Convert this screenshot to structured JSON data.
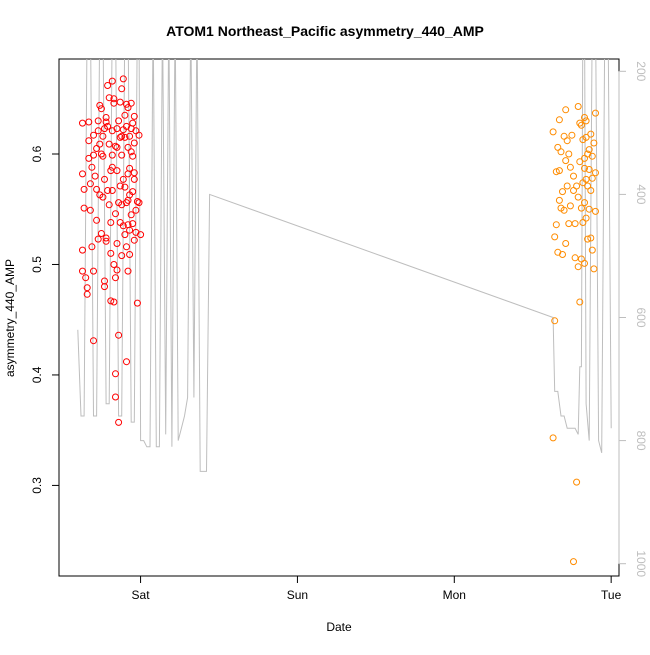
{
  "chart_data": {
    "type": "scatter",
    "title": "ATOM1 Northeast_Pacific asymmetry_440_AMP",
    "xlabel": "Date",
    "ylabel": "asymmetry_440_AMP",
    "x_ticks": [
      "Sat",
      "Sun",
      "Mon",
      "Tue"
    ],
    "x_tick_values": [
      1.0,
      2.0,
      3.0,
      4.0
    ],
    "xlim": [
      0.48,
      4.05
    ],
    "y_ticks": [
      "0.3",
      "0.4",
      "0.5",
      "0.6"
    ],
    "ylim": [
      0.218,
      0.686
    ],
    "y2_ticks": [
      "200",
      "400",
      "600",
      "800",
      "1000"
    ],
    "y2lim": [
      1020,
      180
    ],
    "grid": false,
    "legend": "none",
    "colors": {
      "series1": "#ff0000",
      "series2": "#ff8c00",
      "altitude": "#bebebe"
    },
    "series": [
      {
        "axis": "left",
        "color": "#ff0000",
        "points": [
          [
            0.63,
            0.628
          ],
          [
            0.63,
            0.582
          ],
          [
            0.63,
            0.513
          ],
          [
            0.63,
            0.494
          ],
          [
            0.64,
            0.568
          ],
          [
            0.64,
            0.551
          ],
          [
            0.65,
            0.488
          ],
          [
            0.66,
            0.473
          ],
          [
            0.66,
            0.479
          ],
          [
            0.67,
            0.629
          ],
          [
            0.67,
            0.612
          ],
          [
            0.67,
            0.596
          ],
          [
            0.68,
            0.549
          ],
          [
            0.69,
            0.588
          ],
          [
            0.69,
            0.516
          ],
          [
            0.7,
            0.494
          ],
          [
            0.7,
            0.431
          ],
          [
            0.7,
            0.617
          ],
          [
            0.71,
            0.58
          ],
          [
            0.72,
            0.605
          ],
          [
            0.72,
            0.568
          ],
          [
            0.72,
            0.54
          ],
          [
            0.73,
            0.63
          ],
          [
            0.73,
            0.621
          ],
          [
            0.74,
            0.609
          ],
          [
            0.74,
            0.563
          ],
          [
            0.75,
            0.641
          ],
          [
            0.75,
            0.6
          ],
          [
            0.75,
            0.528
          ],
          [
            0.76,
            0.616
          ],
          [
            0.76,
            0.561
          ],
          [
            0.77,
            0.623
          ],
          [
            0.77,
            0.577
          ],
          [
            0.77,
            0.485
          ],
          [
            0.77,
            0.48
          ],
          [
            0.78,
            0.633
          ],
          [
            0.78,
            0.629
          ],
          [
            0.78,
            0.524
          ],
          [
            0.78,
            0.521
          ],
          [
            0.79,
            0.662
          ],
          [
            0.79,
            0.625
          ],
          [
            0.79,
            0.567
          ],
          [
            0.8,
            0.609
          ],
          [
            0.8,
            0.554
          ],
          [
            0.81,
            0.585
          ],
          [
            0.81,
            0.538
          ],
          [
            0.81,
            0.51
          ],
          [
            0.81,
            0.467
          ],
          [
            0.82,
            0.666
          ],
          [
            0.82,
            0.621
          ],
          [
            0.82,
            0.599
          ],
          [
            0.82,
            0.567
          ],
          [
            0.83,
            0.65
          ],
          [
            0.83,
            0.646
          ],
          [
            0.83,
            0.5
          ],
          [
            0.83,
            0.466
          ],
          [
            0.84,
            0.607
          ],
          [
            0.84,
            0.546
          ],
          [
            0.84,
            0.488
          ],
          [
            0.84,
            0.401
          ],
          [
            0.84,
            0.38
          ],
          [
            0.85,
            0.623
          ],
          [
            0.85,
            0.606
          ],
          [
            0.85,
            0.585
          ],
          [
            0.85,
            0.519
          ],
          [
            0.85,
            0.495
          ],
          [
            0.86,
            0.63
          ],
          [
            0.86,
            0.556
          ],
          [
            0.86,
            0.357
          ],
          [
            0.86,
            0.436
          ],
          [
            0.87,
            0.647
          ],
          [
            0.87,
            0.615
          ],
          [
            0.87,
            0.571
          ],
          [
            0.87,
            0.538
          ],
          [
            0.88,
            0.616
          ],
          [
            0.88,
            0.599
          ],
          [
            0.88,
            0.554
          ],
          [
            0.88,
            0.508
          ],
          [
            0.89,
            0.668
          ],
          [
            0.89,
            0.622
          ],
          [
            0.89,
            0.577
          ],
          [
            0.89,
            0.535
          ],
          [
            0.9,
            0.635
          ],
          [
            0.9,
            0.615
          ],
          [
            0.9,
            0.57
          ],
          [
            0.9,
            0.527
          ],
          [
            0.91,
            0.645
          ],
          [
            0.91,
            0.625
          ],
          [
            0.91,
            0.556
          ],
          [
            0.91,
            0.516
          ],
          [
            0.91,
            0.412
          ],
          [
            0.92,
            0.606
          ],
          [
            0.92,
            0.582
          ],
          [
            0.92,
            0.558
          ],
          [
            0.92,
            0.536
          ],
          [
            0.92,
            0.494
          ],
          [
            0.93,
            0.616
          ],
          [
            0.93,
            0.587
          ],
          [
            0.93,
            0.563
          ],
          [
            0.93,
            0.531
          ],
          [
            0.93,
            0.509
          ],
          [
            0.94,
            0.646
          ],
          [
            0.94,
            0.623
          ],
          [
            0.94,
            0.602
          ],
          [
            0.94,
            0.545
          ],
          [
            0.95,
            0.628
          ],
          [
            0.95,
            0.598
          ],
          [
            0.95,
            0.566
          ],
          [
            0.95,
            0.537
          ],
          [
            0.96,
            0.61
          ],
          [
            0.96,
            0.583
          ],
          [
            0.96,
            0.577
          ],
          [
            0.96,
            0.522
          ],
          [
            0.97,
            0.621
          ],
          [
            0.97,
            0.549
          ],
          [
            0.97,
            0.529
          ],
          [
            0.98,
            0.557
          ],
          [
            0.98,
            0.465
          ],
          [
            0.99,
            0.617
          ],
          [
            0.99,
            0.556
          ],
          [
            1.0,
            0.527
          ],
          [
            0.7,
            0.599
          ],
          [
            0.74,
            0.644
          ],
          [
            0.8,
            0.651
          ],
          [
            0.88,
            0.659
          ],
          [
            0.92,
            0.642
          ],
          [
            0.96,
            0.634
          ],
          [
            0.76,
            0.598
          ],
          [
            0.82,
            0.588
          ],
          [
            0.68,
            0.573
          ],
          [
            0.73,
            0.523
          ]
        ]
      },
      {
        "axis": "left",
        "color": "#ff8c00",
        "points": [
          [
            3.63,
            0.62
          ],
          [
            3.63,
            0.343
          ],
          [
            3.64,
            0.449
          ],
          [
            3.64,
            0.525
          ],
          [
            3.65,
            0.584
          ],
          [
            3.65,
            0.536
          ],
          [
            3.66,
            0.606
          ],
          [
            3.66,
            0.511
          ],
          [
            3.67,
            0.631
          ],
          [
            3.67,
            0.558
          ],
          [
            3.68,
            0.602
          ],
          [
            3.68,
            0.551
          ],
          [
            3.69,
            0.566
          ],
          [
            3.69,
            0.509
          ],
          [
            3.7,
            0.616
          ],
          [
            3.7,
            0.549
          ],
          [
            3.71,
            0.594
          ],
          [
            3.71,
            0.519
          ],
          [
            3.72,
            0.612
          ],
          [
            3.72,
            0.571
          ],
          [
            3.73,
            0.6
          ],
          [
            3.73,
            0.537
          ],
          [
            3.74,
            0.588
          ],
          [
            3.75,
            0.617
          ],
          [
            3.76,
            0.231
          ],
          [
            3.76,
            0.567
          ],
          [
            3.77,
            0.537
          ],
          [
            3.77,
            0.506
          ],
          [
            3.78,
            0.303
          ],
          [
            3.78,
            0.571
          ],
          [
            3.79,
            0.643
          ],
          [
            3.79,
            0.498
          ],
          [
            3.8,
            0.593
          ],
          [
            3.8,
            0.466
          ],
          [
            3.81,
            0.626
          ],
          [
            3.81,
            0.551
          ],
          [
            3.81,
            0.505
          ],
          [
            3.82,
            0.613
          ],
          [
            3.82,
            0.574
          ],
          [
            3.82,
            0.538
          ],
          [
            3.83,
            0.633
          ],
          [
            3.83,
            0.596
          ],
          [
            3.83,
            0.556
          ],
          [
            3.83,
            0.501
          ],
          [
            3.84,
            0.615
          ],
          [
            3.84,
            0.577
          ],
          [
            3.84,
            0.542
          ],
          [
            3.85,
            0.6
          ],
          [
            3.85,
            0.571
          ],
          [
            3.85,
            0.523
          ],
          [
            3.86,
            0.586
          ],
          [
            3.86,
            0.55
          ],
          [
            3.87,
            0.618
          ],
          [
            3.87,
            0.567
          ],
          [
            3.88,
            0.598
          ],
          [
            3.88,
            0.513
          ],
          [
            3.89,
            0.61
          ],
          [
            3.89,
            0.496
          ],
          [
            3.9,
            0.583
          ],
          [
            3.9,
            0.548
          ],
          [
            3.9,
            0.637
          ],
          [
            3.76,
            0.58
          ],
          [
            3.79,
            0.561
          ],
          [
            3.83,
            0.587
          ],
          [
            3.86,
            0.604
          ],
          [
            3.88,
            0.578
          ],
          [
            3.74,
            0.553
          ],
          [
            3.67,
            0.585
          ],
          [
            3.71,
            0.64
          ],
          [
            3.8,
            0.628
          ],
          [
            3.84,
            0.63
          ],
          [
            3.87,
            0.524
          ]
        ]
      },
      {
        "axis": "right",
        "color": "#bebebe",
        "line": true,
        "points": [
          [
            0.6,
            620
          ],
          [
            0.62,
            760
          ],
          [
            0.64,
            760
          ],
          [
            0.66,
            100
          ],
          [
            0.68,
            100
          ],
          [
            0.7,
            760
          ],
          [
            0.72,
            760
          ],
          [
            0.74,
            100
          ],
          [
            0.76,
            100
          ],
          [
            0.78,
            740
          ],
          [
            0.8,
            740
          ],
          [
            0.82,
            100
          ],
          [
            0.84,
            100
          ],
          [
            0.86,
            760
          ],
          [
            0.88,
            760
          ],
          [
            0.9,
            100
          ],
          [
            0.92,
            100
          ],
          [
            0.94,
            770
          ],
          [
            0.96,
            770
          ],
          [
            0.98,
            100
          ],
          [
            0.99,
            100
          ],
          [
            1.0,
            800
          ],
          [
            1.02,
            800
          ],
          [
            1.04,
            810
          ],
          [
            1.06,
            810
          ],
          [
            1.08,
            100
          ],
          [
            1.1,
            810
          ],
          [
            1.12,
            810
          ],
          [
            1.14,
            100
          ],
          [
            1.16,
            790
          ],
          [
            1.18,
            100
          ],
          [
            1.2,
            810
          ],
          [
            1.22,
            100
          ],
          [
            1.24,
            800
          ],
          [
            1.26,
            780
          ],
          [
            1.28,
            760
          ],
          [
            1.3,
            730
          ],
          [
            1.32,
            100
          ],
          [
            1.34,
            730
          ],
          [
            1.36,
            100
          ],
          [
            1.38,
            850
          ],
          [
            1.4,
            850
          ],
          [
            1.42,
            850
          ],
          [
            1.44,
            400
          ],
          [
            3.63,
            600
          ],
          [
            3.63,
            600
          ],
          [
            3.64,
            720
          ],
          [
            3.66,
            720
          ],
          [
            3.67,
            740
          ],
          [
            3.68,
            760
          ],
          [
            3.7,
            760
          ],
          [
            3.72,
            780
          ],
          [
            3.73,
            780
          ],
          [
            3.75,
            780
          ],
          [
            3.77,
            780
          ],
          [
            3.79,
            790
          ],
          [
            3.8,
            680
          ],
          [
            3.81,
            680
          ],
          [
            3.82,
            100
          ],
          [
            3.83,
            100
          ],
          [
            3.84,
            740
          ],
          [
            3.86,
            800
          ],
          [
            3.88,
            100
          ],
          [
            3.9,
            100
          ],
          [
            3.92,
            800
          ],
          [
            3.94,
            820
          ],
          [
            3.96,
            100
          ],
          [
            3.98,
            100
          ],
          [
            4.0,
            780
          ]
        ]
      }
    ]
  }
}
